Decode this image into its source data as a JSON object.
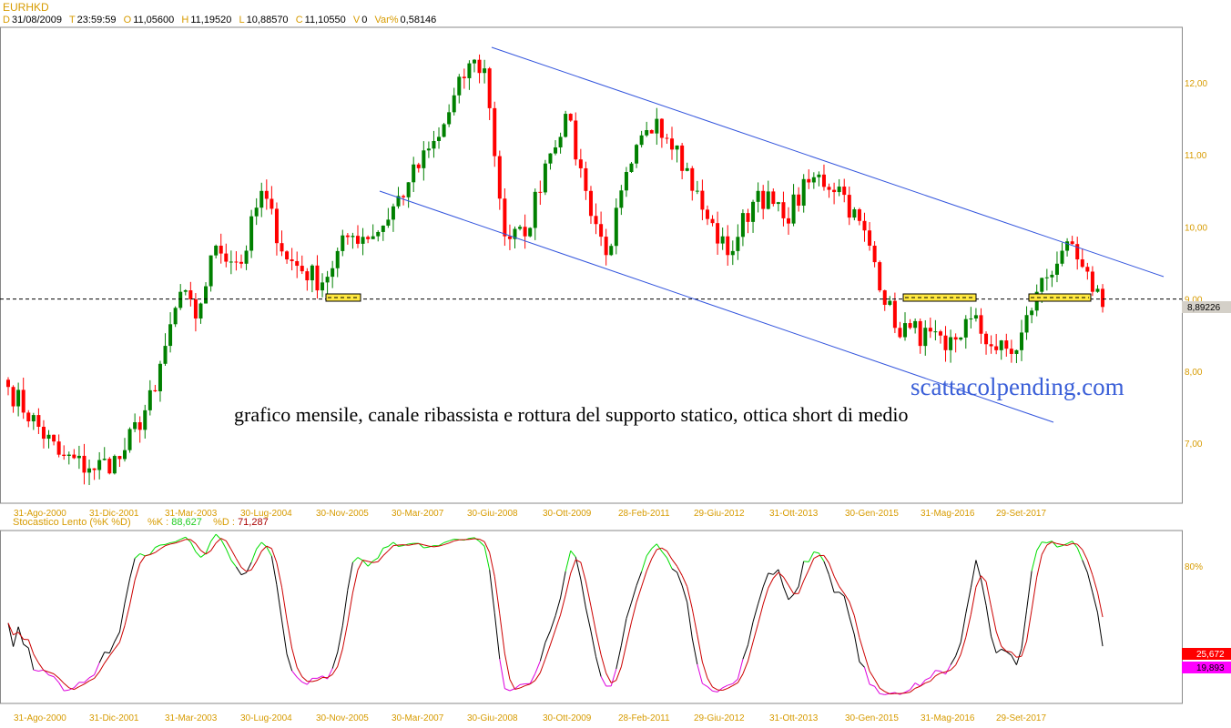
{
  "header": {
    "symbol": "EURHKD",
    "date_key": "D",
    "date": "31/08/2009",
    "time_key": "T",
    "time": "23:59:59",
    "open_key": "O",
    "open": "11,05600",
    "high_key": "H",
    "high": "11,19520",
    "low_key": "L",
    "low": "10,88570",
    "close_key": "C",
    "close": "11,10550",
    "volume_key": "V",
    "volume": "0",
    "var_key": "Var%",
    "var": "0,58146"
  },
  "chart_data": [
    {
      "type": "candlestick",
      "series_name": "EURHKD",
      "frequency": "monthly",
      "y_ticks": [
        "12,00",
        "11,00",
        "10,00",
        "9,00",
        "8,00",
        "7,00"
      ],
      "ylim": [
        6.3,
        12.7
      ],
      "last_value_label": "8,89226",
      "support_level": 9.0,
      "x_ticks": [
        "31-Ago-2000",
        "31-Dic-2001",
        "31-Mar-2003",
        "30-Lug-2004",
        "30-Nov-2005",
        "30-Mar-2007",
        "30-Giu-2008",
        "30-Ott-2009",
        "28-Feb-2011",
        "29-Giu-2012",
        "31-Ott-2013",
        "30-Gen-2015",
        "31-Mag-2016",
        "29-Set-2017"
      ],
      "close_path": [
        [
          "2000-08",
          7.78
        ],
        [
          "2001-06",
          6.84
        ],
        [
          "2001-12",
          6.65
        ],
        [
          "2002-06",
          6.78
        ],
        [
          "2003-01",
          7.72
        ],
        [
          "2003-03",
          8.35
        ],
        [
          "2003-06",
          9.1
        ],
        [
          "2003-09",
          8.73
        ],
        [
          "2004-01",
          9.74
        ],
        [
          "2004-06",
          9.49
        ],
        [
          "2004-10",
          10.5
        ],
        [
          "2005-03",
          9.55
        ],
        [
          "2005-10",
          9.23
        ],
        [
          "2006-03",
          9.86
        ],
        [
          "2006-09",
          9.93
        ],
        [
          "2007-03",
          10.62
        ],
        [
          "2007-09",
          11.25
        ],
        [
          "2008-03",
          12.27
        ],
        [
          "2008-06",
          12.2
        ],
        [
          "2008-10",
          9.87
        ],
        [
          "2009-02",
          9.87
        ],
        [
          "2009-06",
          10.88
        ],
        [
          "2009-10",
          11.57
        ],
        [
          "2010-02",
          10.5
        ],
        [
          "2010-06",
          9.61
        ],
        [
          "2010-11",
          10.88
        ],
        [
          "2011-04",
          11.5
        ],
        [
          "2011-08",
          11.13
        ],
        [
          "2012-01",
          10.24
        ],
        [
          "2012-06",
          9.61
        ],
        [
          "2012-12",
          10.5
        ],
        [
          "2013-05",
          10.12
        ],
        [
          "2013-11",
          10.69
        ],
        [
          "2014-04",
          10.56
        ],
        [
          "2014-10",
          9.74
        ],
        [
          "2015-03",
          8.6
        ],
        [
          "2015-06",
          8.6
        ],
        [
          "2016-01",
          8.29
        ],
        [
          "2016-06",
          8.73
        ],
        [
          "2016-11",
          8.29
        ],
        [
          "2017-03",
          8.29
        ],
        [
          "2017-07",
          9.1
        ],
        [
          "2017-12",
          9.67
        ],
        [
          "2018-03",
          9.55
        ],
        [
          "2018-06",
          9.1
        ],
        [
          "2018-08",
          8.89
        ]
      ],
      "colors": {
        "up": "#008000",
        "down": "#ff0000",
        "channel": "#3355dd",
        "support_box": "#ffe840"
      },
      "annotation": "grafico mensile, canale ribassista e rottura del supporto statico, ottica short di medio",
      "watermark": "scattacolpending.com"
    },
    {
      "type": "line",
      "title": "Stocastico Lento (%K %D)",
      "k_label": "%K :",
      "k_value": "88,627",
      "d_label": "%D :",
      "d_value": "71,287",
      "y_ticks": [
        "80%"
      ],
      "ylim": [
        0,
        100
      ],
      "last_labels": [
        "25,672",
        "19,893"
      ],
      "colors": {
        "k": "#000000",
        "k_overbought": "#00dd00",
        "k_oversold": "#dd00dd",
        "d": "#cc0000"
      }
    }
  ]
}
